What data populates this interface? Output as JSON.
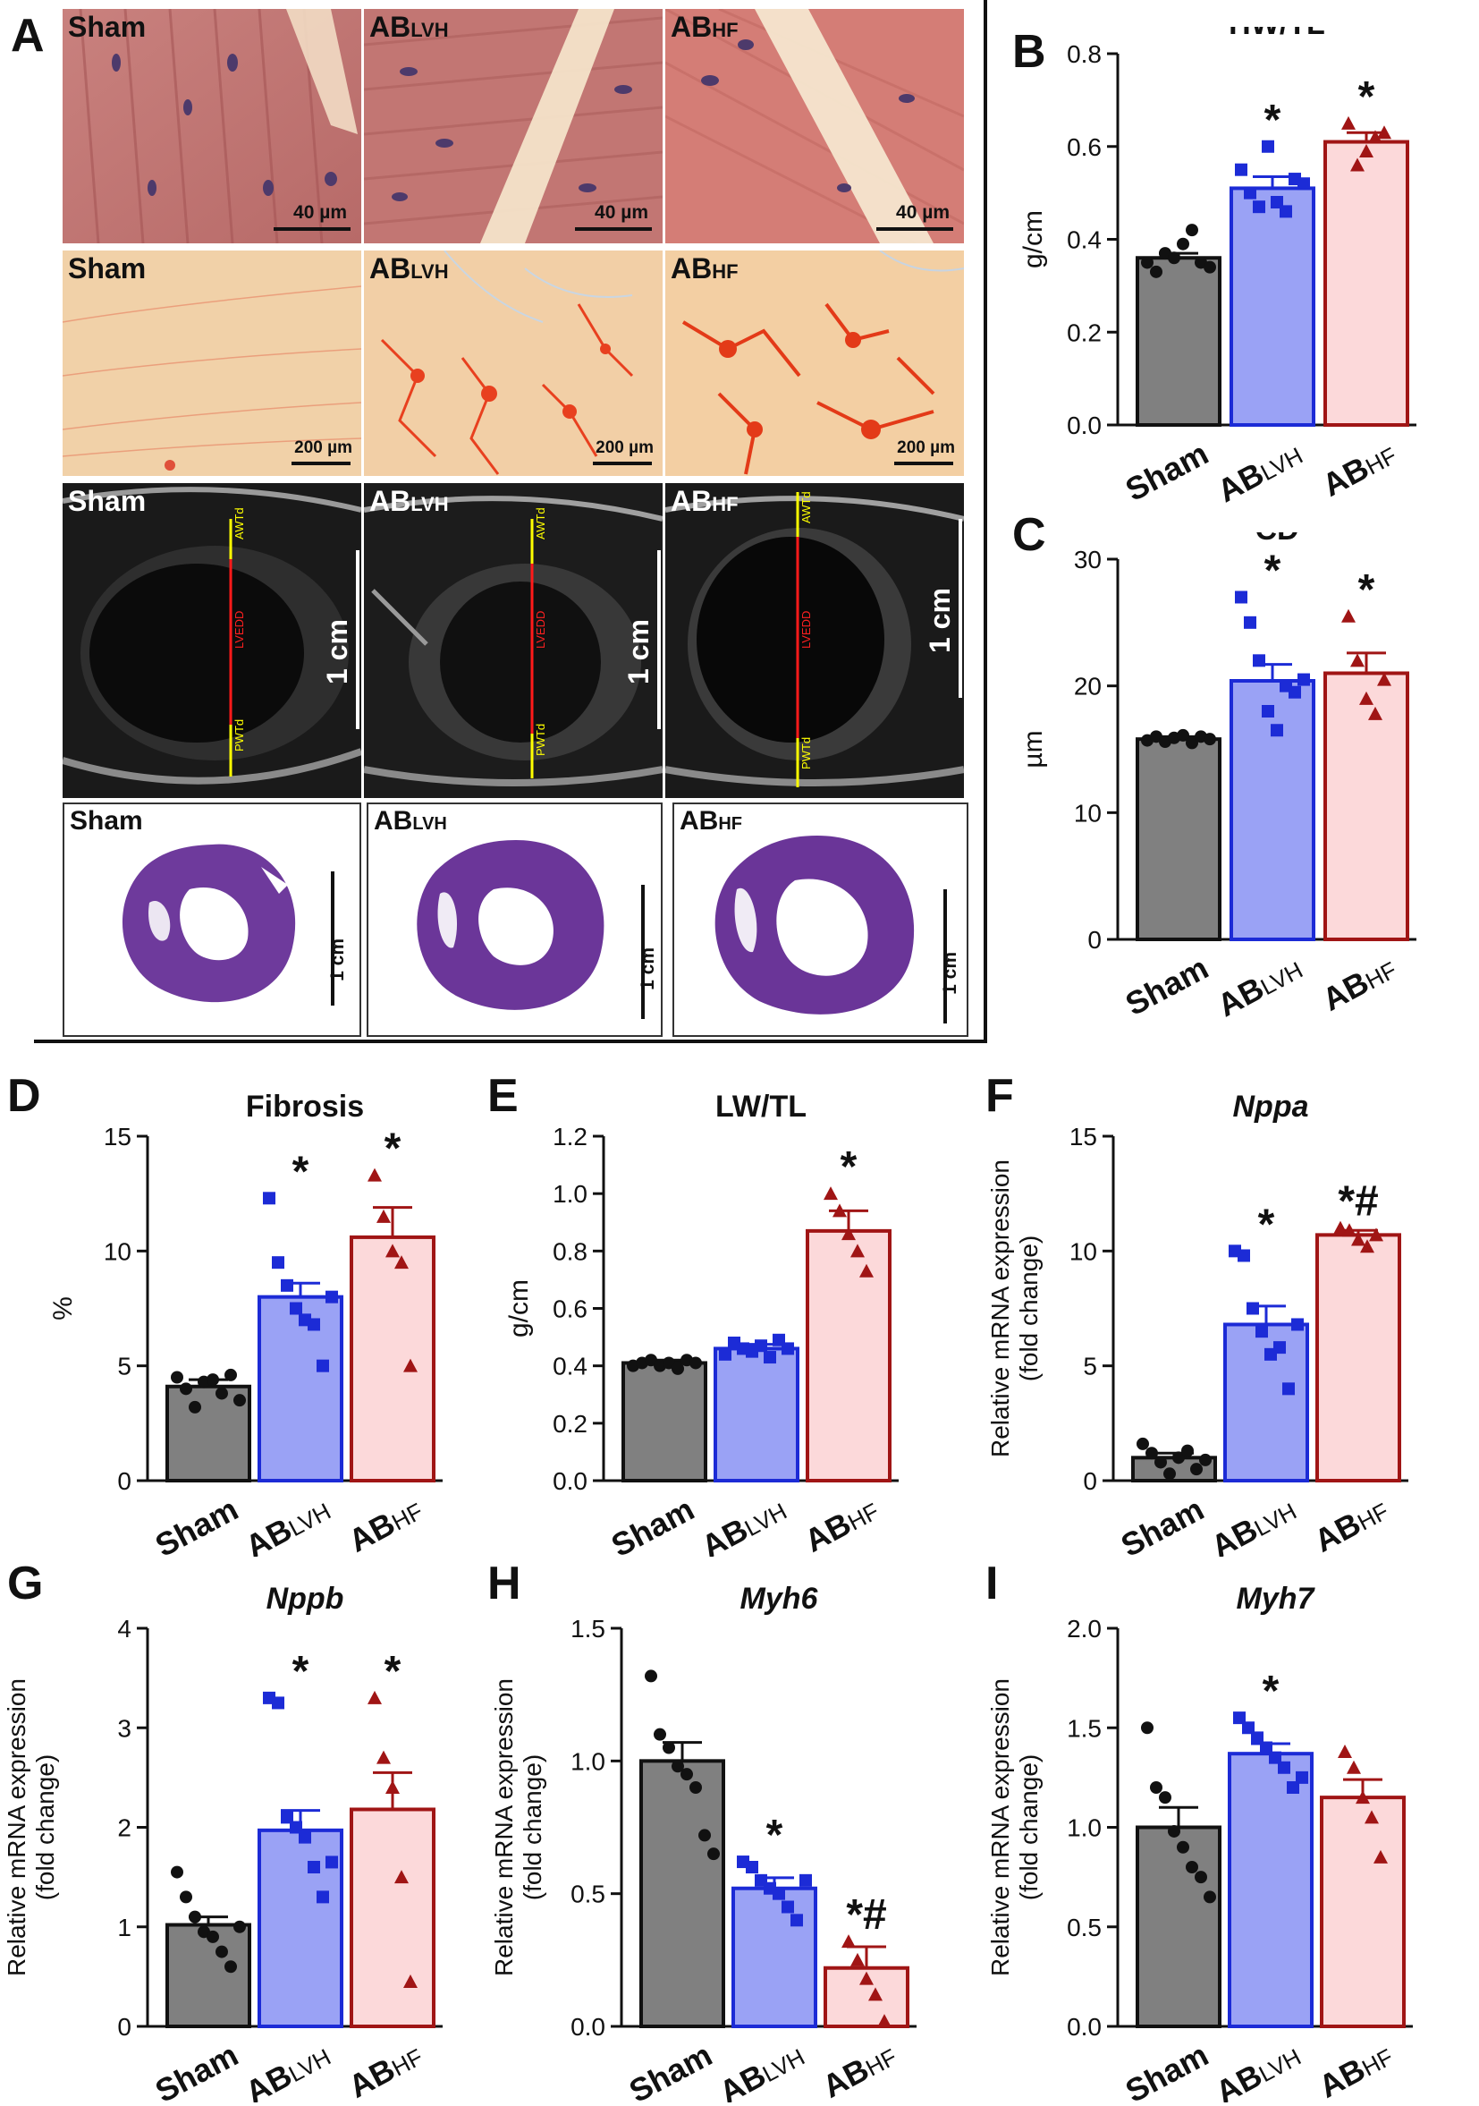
{
  "panel_letters": [
    "A",
    "B",
    "C",
    "D",
    "E",
    "F",
    "G",
    "H",
    "I"
  ],
  "he_row": {
    "labels": [
      {
        "main": "Sham",
        "sub": ""
      },
      {
        "main": "AB",
        "sub": "LVH"
      },
      {
        "main": "AB",
        "sub": "HF"
      }
    ],
    "scale": "40 µm"
  },
  "sirius_row": {
    "labels": [
      {
        "main": "Sham",
        "sub": ""
      },
      {
        "main": "AB",
        "sub": "LVH"
      },
      {
        "main": "AB",
        "sub": "HF"
      }
    ],
    "scale": "200 µm"
  },
  "echo_row": {
    "labels": [
      {
        "main": "Sham",
        "sub": ""
      },
      {
        "main": "AB",
        "sub": "LVH"
      },
      {
        "main": "AB",
        "sub": "HF"
      }
    ],
    "scale": "1 cm",
    "markers": {
      "top": "AWTd",
      "mid": "LVEDD",
      "bottom": "PWTd"
    }
  },
  "section_row": {
    "labels": [
      {
        "main": "Sham",
        "sub": ""
      },
      {
        "main": "AB",
        "sub": "LVH"
      },
      {
        "main": "AB",
        "sub": "HF"
      }
    ],
    "scale": "1 cm"
  },
  "colors": {
    "sham_fill": "#808080",
    "sham_dot": "#111111",
    "lvh_fill": "#9aa2f5",
    "lvh_edge": "#1c2bd6",
    "hf_fill": "#fcd9da",
    "hf_edge": "#a01515"
  },
  "group_labels": [
    {
      "main": "Sham",
      "sub": ""
    },
    {
      "main": "AB",
      "sub": "LVH"
    },
    {
      "main": "AB",
      "sub": "HF"
    }
  ],
  "chart_data": [
    {
      "id": "B",
      "type": "bar",
      "title": "HW/TL",
      "title_italic": false,
      "ylabel": "g/cm",
      "ylabel2": "",
      "ylim": [
        0,
        0.8
      ],
      "ticks": [
        "0.0",
        "0.2",
        "0.4",
        "0.6",
        "0.8"
      ],
      "tick_values": [
        0,
        0.2,
        0.4,
        0.6,
        0.8
      ],
      "categories": [
        "Sham",
        "ABLVH",
        "ABHF"
      ],
      "values": [
        0.36,
        0.51,
        0.61
      ],
      "errors": [
        0.01,
        0.025,
        0.02
      ],
      "points": [
        [
          0.35,
          0.33,
          0.37,
          0.36,
          0.39,
          0.42,
          0.35,
          0.34
        ],
        [
          0.55,
          0.5,
          0.47,
          0.6,
          0.48,
          0.46,
          0.53,
          0.52
        ],
        [
          0.65,
          0.56,
          0.59,
          0.62,
          0.63
        ]
      ],
      "annotations": [
        "",
        "*",
        "*"
      ]
    },
    {
      "id": "C",
      "type": "bar",
      "title": "CD",
      "title_italic": false,
      "ylabel": "µm",
      "ylabel2": "",
      "ylim": [
        0,
        30
      ],
      "ticks": [
        "0",
        "10",
        "20",
        "30"
      ],
      "tick_values": [
        0,
        10,
        20,
        30
      ],
      "categories": [
        "Sham",
        "ABLVH",
        "ABHF"
      ],
      "values": [
        15.8,
        20.4,
        21.0
      ],
      "errors": [
        0.2,
        1.3,
        1.6
      ],
      "points": [
        [
          15.7,
          16.0,
          15.6,
          15.9,
          16.1,
          15.5,
          16.0,
          15.8
        ],
        [
          27,
          25,
          22,
          18,
          16.5,
          20,
          19.5,
          20.5
        ],
        [
          25.5,
          22,
          19,
          17.8,
          20.5
        ]
      ],
      "annotations": [
        "",
        "*",
        "*"
      ]
    },
    {
      "id": "D",
      "type": "bar",
      "title": "Fibrosis",
      "title_italic": false,
      "ylabel": "%",
      "ylabel2": "",
      "ylim": [
        0,
        15
      ],
      "ticks": [
        "0",
        "5",
        "10",
        "15"
      ],
      "tick_values": [
        0,
        5,
        10,
        15
      ],
      "categories": [
        "Sham",
        "ABLVH",
        "ABHF"
      ],
      "values": [
        4.1,
        8.0,
        10.6
      ],
      "errors": [
        0.3,
        0.6,
        1.3
      ],
      "points": [
        [
          4.5,
          4.0,
          3.2,
          4.3,
          4.4,
          3.8,
          4.6,
          3.5
        ],
        [
          12.3,
          9.5,
          8.5,
          7.5,
          7.0,
          6.8,
          5.0,
          8.0
        ],
        [
          13.3,
          11.5,
          10.0,
          9.5,
          5.0
        ]
      ],
      "annotations": [
        "",
        "*",
        "*"
      ]
    },
    {
      "id": "E",
      "type": "bar",
      "title": "LW/TL",
      "title_italic": false,
      "ylabel": "g/cm",
      "ylabel2": "",
      "ylim": [
        0,
        1.2
      ],
      "ticks": [
        "0.0",
        "0.2",
        "0.4",
        "0.6",
        "0.8",
        "1.0",
        "1.2"
      ],
      "tick_values": [
        0,
        0.2,
        0.4,
        0.6,
        0.8,
        1.0,
        1.2
      ],
      "categories": [
        "Sham",
        "ABLVH",
        "ABHF"
      ],
      "values": [
        0.41,
        0.46,
        0.87
      ],
      "errors": [
        0.01,
        0.015,
        0.07
      ],
      "points": [
        [
          0.4,
          0.41,
          0.42,
          0.4,
          0.41,
          0.39,
          0.42,
          0.41
        ],
        [
          0.44,
          0.48,
          0.46,
          0.45,
          0.47,
          0.43,
          0.49,
          0.46
        ],
        [
          1.0,
          0.94,
          0.86,
          0.8,
          0.73
        ]
      ],
      "annotations": [
        "",
        "",
        "*"
      ]
    },
    {
      "id": "F",
      "type": "bar",
      "title": "Nppa",
      "title_italic": true,
      "ylabel": "Relative mRNA expression",
      "ylabel2": "(fold change)",
      "ylim": [
        0,
        15
      ],
      "ticks": [
        "0",
        "5",
        "10",
        "15"
      ],
      "tick_values": [
        0,
        5,
        10,
        15
      ],
      "categories": [
        "Sham",
        "ABLVH",
        "ABHF"
      ],
      "values": [
        1.0,
        6.8,
        10.7
      ],
      "errors": [
        0.2,
        0.8,
        0.2
      ],
      "points": [
        [
          1.6,
          1.2,
          0.8,
          0.3,
          1.0,
          1.3,
          0.5,
          0.9
        ],
        [
          10.0,
          9.8,
          7.5,
          6.5,
          5.5,
          5.8,
          4.0,
          6.8
        ],
        [
          11.0,
          10.9,
          10.5,
          10.2,
          10.7
        ]
      ],
      "annotations": [
        "",
        "*",
        "*#"
      ]
    },
    {
      "id": "G",
      "type": "bar",
      "title": "Nppb",
      "title_italic": true,
      "ylabel": "Relative mRNA expression",
      "ylabel2": "(fold change)",
      "ylim": [
        0,
        4
      ],
      "ticks": [
        "0",
        "1",
        "2",
        "3",
        "4"
      ],
      "tick_values": [
        0,
        1,
        2,
        3,
        4
      ],
      "categories": [
        "Sham",
        "ABLVH",
        "ABHF"
      ],
      "values": [
        1.02,
        1.97,
        2.18
      ],
      "errors": [
        0.08,
        0.2,
        0.37
      ],
      "points": [
        [
          1.55,
          1.3,
          1.1,
          0.95,
          0.9,
          0.75,
          0.6,
          1.0
        ],
        [
          3.3,
          3.25,
          2.1,
          2.0,
          1.9,
          1.6,
          1.3,
          1.65
        ],
        [
          3.3,
          2.7,
          2.4,
          1.5,
          0.45
        ]
      ],
      "annotations": [
        "",
        "*",
        "*"
      ]
    },
    {
      "id": "H",
      "type": "bar",
      "title": "Myh6",
      "title_italic": true,
      "ylabel": "Relative mRNA expression",
      "ylabel2": "(fold change)",
      "ylim": [
        0,
        1.5
      ],
      "ticks": [
        "0.0",
        "0.5",
        "1.0",
        "1.5"
      ],
      "tick_values": [
        0,
        0.5,
        1.0,
        1.5
      ],
      "categories": [
        "Sham",
        "ABLVH",
        "ABHF"
      ],
      "values": [
        1.0,
        0.52,
        0.22
      ],
      "errors": [
        0.07,
        0.04,
        0.08
      ],
      "points": [
        [
          1.32,
          1.1,
          1.05,
          0.98,
          0.95,
          0.9,
          0.72,
          0.65
        ],
        [
          0.62,
          0.6,
          0.55,
          0.52,
          0.5,
          0.45,
          0.4,
          0.55
        ],
        [
          0.32,
          0.25,
          0.18,
          0.12,
          0.02
        ]
      ],
      "annotations": [
        "",
        "*",
        "*#"
      ]
    },
    {
      "id": "I",
      "type": "bar",
      "title": "Myh7",
      "title_italic": true,
      "ylabel": "Relative mRNA expression",
      "ylabel2": "(fold change)",
      "ylim": [
        0,
        2.0
      ],
      "ticks": [
        "0.0",
        "0.5",
        "1.0",
        "1.5",
        "2.0"
      ],
      "tick_values": [
        0,
        0.5,
        1.0,
        1.5,
        2.0
      ],
      "categories": [
        "Sham",
        "ABLVH",
        "ABHF"
      ],
      "values": [
        1.0,
        1.37,
        1.15
      ],
      "errors": [
        0.1,
        0.05,
        0.09
      ],
      "points": [
        [
          1.5,
          1.2,
          1.15,
          0.98,
          0.9,
          0.8,
          0.75,
          0.65
        ],
        [
          1.55,
          1.5,
          1.45,
          1.4,
          1.35,
          1.3,
          1.2,
          1.25
        ],
        [
          1.38,
          1.3,
          1.15,
          1.05,
          0.85
        ]
      ],
      "annotations": [
        "",
        "*",
        ""
      ]
    }
  ]
}
